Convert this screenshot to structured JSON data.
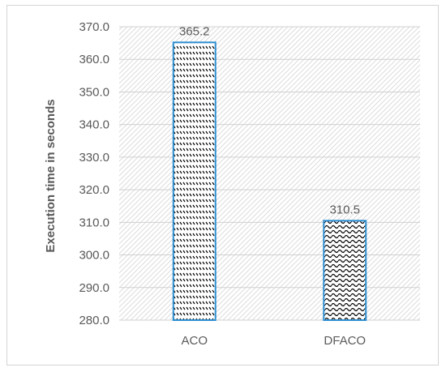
{
  "chart_data": {
    "type": "bar",
    "title": "",
    "xlabel": "",
    "ylabel": "Execution time in seconds",
    "categories": [
      "ACO",
      "DFACO"
    ],
    "values": [
      365.2,
      310.5
    ],
    "value_labels": [
      "365.2",
      "310.5"
    ],
    "ylim": [
      280,
      370
    ],
    "yticks": [
      280,
      290,
      300,
      310,
      320,
      330,
      340,
      350,
      360,
      370
    ],
    "ytick_labels": [
      "280.0",
      "290.0",
      "300.0",
      "310.0",
      "320.0",
      "330.0",
      "340.0",
      "350.0",
      "360.0",
      "370.0"
    ],
    "grid": true,
    "legend": "none",
    "colors": {
      "bar_border": "#2e8fd1",
      "bar_pattern": "#000000",
      "plot_hatch": "#d9d9d9",
      "gridline": "#d0d0d0",
      "text": "#595959"
    }
  }
}
